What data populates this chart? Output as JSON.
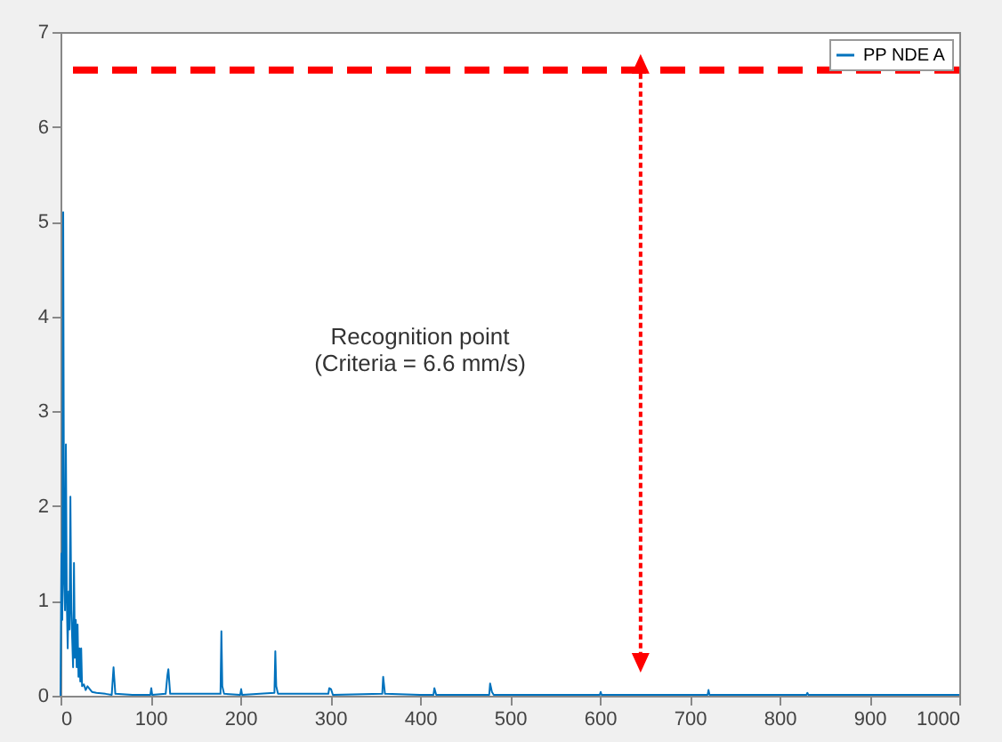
{
  "chart_data": {
    "type": "line",
    "x": [
      0,
      1,
      2,
      3,
      4,
      5,
      6,
      7,
      8,
      9,
      10,
      11,
      12,
      13,
      14,
      15,
      16,
      17,
      18,
      19,
      20,
      21,
      22,
      23,
      24,
      26,
      28,
      30,
      35,
      40,
      50,
      57,
      59,
      61,
      80,
      100,
      101,
      102,
      117,
      119,
      120,
      122,
      150,
      178,
      179,
      180,
      182,
      200,
      201,
      202,
      238,
      239,
      240,
      242,
      298,
      299,
      301,
      303,
      358,
      359,
      361,
      400,
      415,
      416,
      418,
      477,
      478,
      480,
      482,
      600,
      601,
      602,
      720,
      721,
      722,
      830,
      831,
      832,
      1000
    ],
    "series": [
      {
        "name": "PP NDE A",
        "color": "#0072bd",
        "values": [
          0,
          1.5,
          0.8,
          5.1,
          1.2,
          0.9,
          2.65,
          1.0,
          0.5,
          1.1,
          0.7,
          2.1,
          0.9,
          0.6,
          0.3,
          1.4,
          0.4,
          0.8,
          0.3,
          0.75,
          0.2,
          0.5,
          0.15,
          0.5,
          0.1,
          0.12,
          0.06,
          0.1,
          0.04,
          0.03,
          0.02,
          0.01,
          0.3,
          0.02,
          0.01,
          0.01,
          0.08,
          0.01,
          0.02,
          0.22,
          0.28,
          0.02,
          0.02,
          0.02,
          0.68,
          0.1,
          0.02,
          0.01,
          0.07,
          0.01,
          0.03,
          0.47,
          0.1,
          0.02,
          0.02,
          0.08,
          0.07,
          0.01,
          0.02,
          0.2,
          0.02,
          0.01,
          0.01,
          0.08,
          0.01,
          0.01,
          0.13,
          0.04,
          0.01,
          0.01,
          0.04,
          0.01,
          0.01,
          0.06,
          0.01,
          0.01,
          0.03,
          0.01,
          0.01
        ]
      }
    ],
    "xlim": [
      0,
      1000
    ],
    "xticks": [
      0,
      100,
      200,
      300,
      400,
      500,
      600,
      700,
      800,
      900,
      1000
    ],
    "ylim": [
      0,
      7
    ],
    "yticks": [
      0,
      1,
      2,
      3,
      4,
      5,
      6,
      7
    ],
    "legend": "top right",
    "ref_lines": [
      {
        "axis": "y",
        "value": 6.6,
        "color": "#ff0000",
        "line_style": "dashed"
      }
    ],
    "annotations": [
      "Recognition point\n(Criteria = 6.6 mm/s)"
    ]
  }
}
